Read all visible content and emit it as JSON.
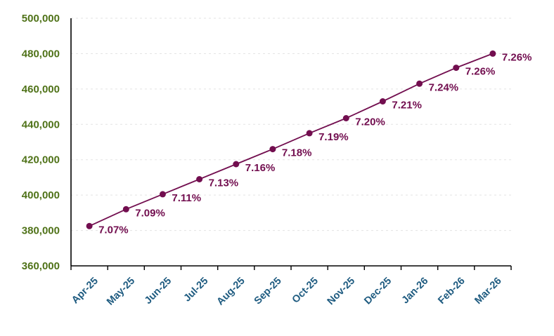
{
  "chart_data": {
    "type": "line",
    "title": "",
    "xlabel": "",
    "ylabel": "",
    "legend": "none",
    "grid": "horizontal-dashed",
    "x_categories": [
      "Apr-25",
      "May-25",
      "Jun-25",
      "Jul-25",
      "Aug-25",
      "Sep-25",
      "Oct-25",
      "Nov-25",
      "Dec-25",
      "Jan-26",
      "Feb-26",
      "Mar-26"
    ],
    "series": [
      {
        "name": "monthly-amount",
        "values": [
          382500,
          392000,
          400500,
          409000,
          417500,
          426000,
          435000,
          443500,
          453000,
          463000,
          472000,
          480000
        ],
        "point_labels": [
          "7.07%",
          "7.09%",
          "7.11%",
          "7.13%",
          "7.16%",
          "7.18%",
          "7.19%",
          "7.20%",
          "7.21%",
          "7.24%",
          "7.26%",
          "7.26%"
        ]
      }
    ],
    "ylim": [
      360000,
      500000
    ],
    "y_tick_step": 20000,
    "y_tick_labels": [
      "360,000",
      "380,000",
      "400,000",
      "420,000",
      "440,000",
      "460,000",
      "480,000",
      "500,000"
    ],
    "colors": {
      "line": "#720E4F",
      "marker": "#720E4F",
      "point_label": "#720E4F",
      "y_tick_label": "#4F7218",
      "x_tick_label": "#1E5B80",
      "gridline": "#E3E3E3",
      "axis": "#000000",
      "background": "#FFFFFF"
    }
  }
}
